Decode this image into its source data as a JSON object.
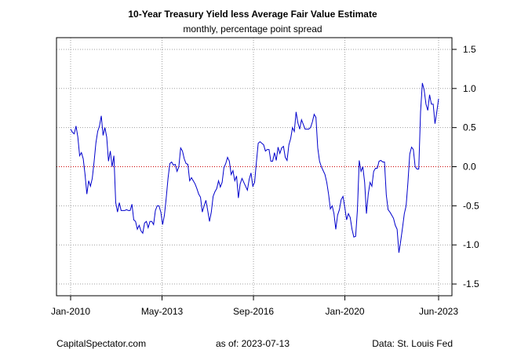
{
  "chart_data": {
    "type": "line",
    "title": "10-Year Treasury Yield less Average Fair Value Estimate",
    "subtitle": "monthly, percentage point spread",
    "xlabel": "",
    "ylabel": "",
    "x_start": "2010-01",
    "x_end": "2023-06",
    "x_ticks": [
      {
        "label": "Jan-2010",
        "pos": 2010.0
      },
      {
        "label": "May-2013",
        "pos": 2013.333
      },
      {
        "label": "Sep-2016",
        "pos": 2016.667
      },
      {
        "label": "Jan-2020",
        "pos": 2020.0
      },
      {
        "label": "Jun-2023",
        "pos": 2023.417
      }
    ],
    "ylim": [
      -1.65,
      1.65
    ],
    "y_ticks": [
      1.5,
      1.0,
      0.5,
      0.0,
      -0.5,
      -1.0,
      -1.5
    ],
    "y_tick_labels": [
      "1.5",
      "1.0",
      "0.5",
      "0.0",
      "-0.5",
      "-1.0",
      "-1.5"
    ],
    "y_axis_side": "right",
    "grid": true,
    "reference_line": {
      "value": 0.0,
      "color": "#cc0000",
      "style": "dotted"
    },
    "series": [
      {
        "name": "spread",
        "color": "#0000cc",
        "values": [
          0.48,
          0.44,
          0.42,
          0.52,
          0.38,
          0.14,
          0.18,
          0.1,
          -0.1,
          -0.35,
          -0.18,
          -0.25,
          -0.15,
          0.06,
          0.3,
          0.45,
          0.52,
          0.65,
          0.4,
          0.5,
          0.38,
          0.07,
          0.2,
          0.0,
          0.14,
          -0.46,
          -0.58,
          -0.46,
          -0.56,
          -0.56,
          -0.56,
          -0.55,
          -0.56,
          -0.56,
          -0.48,
          -0.68,
          -0.7,
          -0.8,
          -0.75,
          -0.82,
          -0.85,
          -0.72,
          -0.7,
          -0.78,
          -0.7,
          -0.7,
          -0.74,
          -0.56,
          -0.5,
          -0.5,
          -0.58,
          -0.74,
          -0.62,
          -0.4,
          -0.15,
          0.04,
          0.06,
          0.02,
          0.03,
          -0.06,
          0.0,
          0.24,
          0.2,
          0.1,
          0.04,
          0.03,
          -0.18,
          -0.14,
          -0.18,
          -0.22,
          -0.28,
          -0.35,
          -0.39,
          -0.58,
          -0.5,
          -0.43,
          -0.56,
          -0.7,
          -0.58,
          -0.38,
          -0.32,
          -0.28,
          -0.18,
          -0.26,
          -0.2,
          -0.01,
          0.04,
          0.12,
          0.07,
          -0.1,
          -0.05,
          -0.18,
          -0.12,
          -0.4,
          -0.22,
          -0.15,
          -0.2,
          -0.25,
          -0.3,
          -0.16,
          -0.08,
          -0.25,
          -0.2,
          0.06,
          0.3,
          0.32,
          0.3,
          0.28,
          0.2,
          0.22,
          0.22,
          0.07,
          0.07,
          0.18,
          0.08,
          0.25,
          0.17,
          0.24,
          0.26,
          0.12,
          0.08,
          0.28,
          0.36,
          0.5,
          0.45,
          0.7,
          0.56,
          0.48,
          0.6,
          0.54,
          0.48,
          0.48,
          0.48,
          0.5,
          0.57,
          0.67,
          0.63,
          0.24,
          0.07,
          0.0,
          -0.05,
          -0.1,
          -0.2,
          -0.35,
          -0.54,
          -0.5,
          -0.6,
          -0.8,
          -0.62,
          -0.55,
          -0.42,
          -0.38,
          -0.52,
          -0.68,
          -0.6,
          -0.65,
          -0.8,
          -0.9,
          -0.89,
          -0.55,
          0.08,
          -0.06,
          0.0,
          -0.2,
          -0.6,
          -0.35,
          -0.2,
          -0.25,
          -0.06,
          -0.02,
          -0.02,
          0.07,
          0.08,
          0.06,
          0.06,
          -0.36,
          -0.55,
          -0.58,
          -0.62,
          -0.66,
          -0.75,
          -0.8,
          -1.1,
          -0.95,
          -0.78,
          -0.6,
          -0.5,
          -0.2,
          0.16,
          0.25,
          0.22,
          0.0,
          -0.03,
          -0.03,
          0.7,
          1.07,
          0.98,
          0.8,
          0.72,
          0.92,
          0.8,
          0.8,
          0.55,
          0.7,
          0.87
        ]
      }
    ]
  },
  "footer": {
    "source_left": "CapitalSpectator.com",
    "as_of": "as of:  2023-07-13",
    "source_right": "Data: St. Louis Fed"
  },
  "colors": {
    "series": "#0000cc",
    "zero_line": "#cc0000",
    "grid": "#a0a0a0",
    "frame": "#000000"
  }
}
